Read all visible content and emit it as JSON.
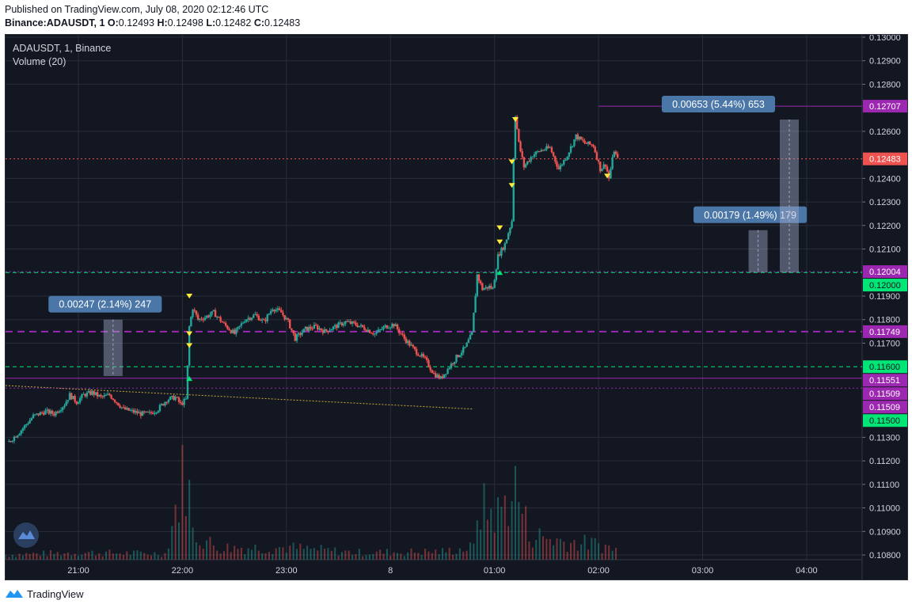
{
  "header": {
    "published": "Published on TradingView.com, July 08, 2020 02:12:46 UTC",
    "symbol": "Binance:ADAUSDT, 1",
    "ohlc": [
      {
        "k": "O:",
        "v": "0.12493"
      },
      {
        "k": "H:",
        "v": "0.12498"
      },
      {
        "k": "L:",
        "v": "0.12482"
      },
      {
        "k": "C:",
        "v": "0.12483"
      }
    ]
  },
  "footer": {
    "brand": "TradingView"
  },
  "chart_data": {
    "type": "candlestick",
    "legend": {
      "title": "ADAUSDT, 1, Binance",
      "indicator": "Volume (20)"
    },
    "colors": {
      "background": "#131722",
      "up": "#26a69a",
      "down": "#ef5350",
      "grid": "#2a2e39",
      "axis_text": "#d1d4dc",
      "purple": "#9c27b0",
      "green": "#00e676",
      "last_price": "#ef5350",
      "measure_box": "#4a76a8"
    },
    "xlim": [
      "20:18",
      "04:32"
    ],
    "ylim": [
      0.1078,
      0.1301
    ],
    "x_ticks": [
      "21:00",
      "22:00",
      "23:00",
      "8",
      "01:00",
      "02:00",
      "03:00",
      "04:00"
    ],
    "y_ticks": [
      "0.13000",
      "0.12900",
      "0.12800",
      "0.12600",
      "0.12400",
      "0.12300",
      "0.12200",
      "0.12100",
      "0.11900",
      "0.11800",
      "0.11700",
      "0.11300",
      "0.11200",
      "0.11100",
      "0.11000",
      "0.10900",
      "0.10800"
    ],
    "price_path": [
      [
        "20:20",
        0.1128
      ],
      [
        "20:27",
        0.1133
      ],
      [
        "20:34",
        0.1139
      ],
      [
        "20:41",
        0.1141
      ],
      [
        "20:46",
        0.114
      ],
      [
        "20:52",
        0.1144
      ],
      [
        "20:55",
        0.1148
      ],
      [
        "20:59",
        0.1145
      ],
      [
        "21:03",
        0.1148
      ],
      [
        "21:08",
        0.1149
      ],
      [
        "21:13",
        0.1147
      ],
      [
        "21:18",
        0.1148
      ],
      [
        "21:22",
        0.1145
      ],
      [
        "21:26",
        0.1142
      ],
      [
        "21:31",
        0.1141
      ],
      [
        "21:36",
        0.114
      ],
      [
        "21:41",
        0.114
      ],
      [
        "21:46",
        0.1142
      ],
      [
        "21:51",
        0.1146
      ],
      [
        "21:56",
        0.1147
      ],
      [
        "21:59",
        0.1144
      ],
      [
        "22:02",
        0.1146
      ],
      [
        "22:03",
        0.116
      ],
      [
        "22:04",
        0.1177
      ],
      [
        "22:06",
        0.1185
      ],
      [
        "22:09",
        0.118
      ],
      [
        "22:13",
        0.1181
      ],
      [
        "22:18",
        0.1183
      ],
      [
        "22:24",
        0.1178
      ],
      [
        "22:30",
        0.1174
      ],
      [
        "22:36",
        0.118
      ],
      [
        "22:42",
        0.1182
      ],
      [
        "22:47",
        0.1179
      ],
      [
        "22:52",
        0.1185
      ],
      [
        "22:57",
        0.1183
      ],
      [
        "23:01",
        0.1179
      ],
      [
        "23:05",
        0.1172
      ],
      [
        "23:11",
        0.1176
      ],
      [
        "23:17",
        0.1177
      ],
      [
        "23:22",
        0.1175
      ],
      [
        "23:28",
        0.1177
      ],
      [
        "23:34",
        0.1179
      ],
      [
        "23:40",
        0.1178
      ],
      [
        "23:46",
        0.1176
      ],
      [
        "23:51",
        0.1174
      ],
      [
        "23:57",
        0.1177
      ],
      [
        "00:02",
        0.1178
      ],
      [
        "00:08",
        0.1172
      ],
      [
        "00:14",
        0.1167
      ],
      [
        "00:20",
        0.1163
      ],
      [
        "00:25",
        0.1157
      ],
      [
        "00:29",
        0.1155
      ],
      [
        "00:33",
        0.1159
      ],
      [
        "00:38",
        0.1164
      ],
      [
        "00:43",
        0.1168
      ],
      [
        "00:47",
        0.1174
      ],
      [
        "00:50",
        0.1199
      ],
      [
        "00:53",
        0.1193
      ],
      [
        "00:57",
        0.1194
      ],
      [
        "00:59",
        0.1193
      ],
      [
        "01:02",
        0.1207
      ],
      [
        "01:06",
        0.1212
      ],
      [
        "01:10",
        0.1222
      ],
      [
        "01:11",
        0.1249
      ],
      [
        "01:12",
        0.1267
      ],
      [
        "01:14",
        0.1255
      ],
      [
        "01:17",
        0.1245
      ],
      [
        "01:22",
        0.125
      ],
      [
        "01:27",
        0.1252
      ],
      [
        "01:32",
        0.1253
      ],
      [
        "01:37",
        0.1244
      ],
      [
        "01:42",
        0.125
      ],
      [
        "01:47",
        0.1258
      ],
      [
        "01:52",
        0.1255
      ],
      [
        "01:57",
        0.1254
      ],
      [
        "02:01",
        0.1244
      ],
      [
        "02:04",
        0.1246
      ],
      [
        "02:06",
        0.124
      ],
      [
        "02:09",
        0.1252
      ],
      [
        "02:11",
        0.1248
      ]
    ],
    "horizontal_lines": [
      {
        "price": 0.12707,
        "label": "0.12707",
        "color": "#9c27b0",
        "style": "solid",
        "from": "02:00"
      },
      {
        "price": 0.12483,
        "label": "0.12483",
        "color": "#ef5350",
        "style": "dotted",
        "from": "20:18"
      },
      {
        "price": 0.12004,
        "label": "0.12004",
        "color": "#9c27b0",
        "style": "dotted",
        "from": "20:18"
      },
      {
        "price": 0.12,
        "label": "0.12000",
        "color": "#00e676",
        "style": "dashed",
        "from": "20:18"
      },
      {
        "price": 0.11749,
        "label": "0.11749",
        "color": "#9c27b0",
        "style": "dashed",
        "from": "20:18"
      },
      {
        "price": 0.116,
        "label": "0.11600",
        "color": "#00e676",
        "style": "dashed",
        "from": "20:18"
      },
      {
        "price": 0.11551,
        "label": "0.11551",
        "color": "#9c27b0",
        "style": "solid",
        "from": "20:18"
      },
      {
        "price": 0.11509,
        "label": "0.11509",
        "color": "#9c27b0",
        "style": "dotted",
        "from": "20:18"
      },
      {
        "price": 0.11509,
        "label": "0.11509",
        "color": "#9c27b0",
        "style": "none",
        "from": "20:18"
      },
      {
        "price": 0.115,
        "label": "0.11500",
        "color": "#00e676",
        "style": "none",
        "from": "20:18"
      }
    ],
    "trend_line": {
      "from": [
        "20:18",
        0.1152
      ],
      "to": [
        "00:48",
        0.1142
      ],
      "color": "#c8a83a"
    },
    "measurements": [
      {
        "label": "0.00247 (2.14%) 247",
        "time": "21:20",
        "from": 0.1156,
        "to": 0.118
      },
      {
        "label": "0.00179 (1.49%) 179",
        "time": "03:32",
        "from": 0.12,
        "to": 0.1218
      },
      {
        "label": "0.00653 (5.44%) 653",
        "time": "03:50",
        "from": 0.12,
        "to": 0.1265
      }
    ],
    "markers": [
      {
        "time": "22:04",
        "price": 0.119,
        "kind": "sell"
      },
      {
        "time": "22:04",
        "price": 0.1174,
        "kind": "sell"
      },
      {
        "time": "22:04",
        "price": 0.1169,
        "kind": "sell"
      },
      {
        "time": "22:04",
        "price": 0.1155,
        "kind": "buy"
      },
      {
        "time": "01:03",
        "price": 0.1219,
        "kind": "sell"
      },
      {
        "time": "01:03",
        "price": 0.1213,
        "kind": "sell"
      },
      {
        "time": "01:03",
        "price": 0.12,
        "kind": "buy"
      },
      {
        "time": "01:10",
        "price": 0.1237,
        "kind": "sell"
      },
      {
        "time": "01:10",
        "price": 0.1247,
        "kind": "sell"
      },
      {
        "time": "01:12",
        "price": 0.1265,
        "kind": "sell"
      },
      {
        "time": "02:05",
        "price": 0.1241,
        "kind": "sell"
      }
    ],
    "volume_path": [
      [
        "20:18",
        0.05
      ],
      [
        "21:00",
        0.07
      ],
      [
        "21:50",
        0.06
      ],
      [
        "22:03",
        1.0
      ],
      [
        "22:05",
        0.28
      ],
      [
        "22:20",
        0.12
      ],
      [
        "23:00",
        0.12
      ],
      [
        "23:40",
        0.07
      ],
      [
        "00:30",
        0.08
      ],
      [
        "00:48",
        0.12
      ],
      [
        "00:50",
        0.52
      ],
      [
        "01:02",
        0.45
      ],
      [
        "01:08",
        0.62
      ],
      [
        "01:12",
        0.72
      ],
      [
        "01:20",
        0.25
      ],
      [
        "01:40",
        0.18
      ],
      [
        "02:00",
        0.15
      ],
      [
        "02:11",
        0.1
      ]
    ]
  }
}
